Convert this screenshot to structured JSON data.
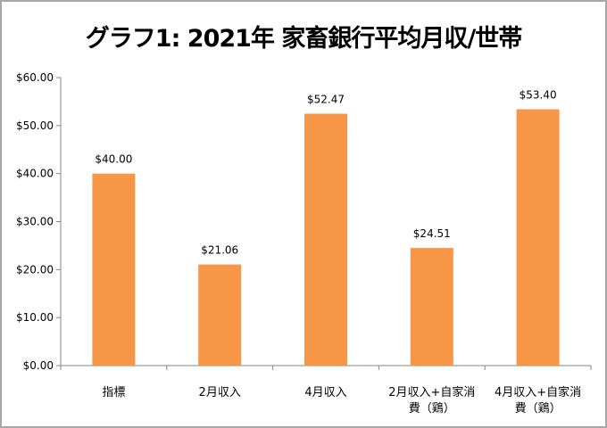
{
  "chart_data": {
    "type": "bar",
    "title": "グラフ1: 2021年 家畜銀行平均月収/世帯",
    "categories": [
      [
        "指標"
      ],
      [
        "2月収入"
      ],
      [
        "4月収入"
      ],
      [
        "2月収入+自家消",
        "費（鶏）"
      ],
      [
        "4月収入+自家消",
        "費（鶏）"
      ]
    ],
    "values": [
      40.0,
      21.06,
      52.47,
      24.51,
      53.4
    ],
    "data_labels": [
      "$40.00",
      "$21.06",
      "$52.47",
      "$24.51",
      "$53.40"
    ],
    "ylim": [
      0,
      60
    ],
    "yticks": [
      "$0.00",
      "$10.00",
      "$20.00",
      "$30.00",
      "$40.00",
      "$50.00",
      "$60.00"
    ],
    "grid": false,
    "bar_color": "#F79646",
    "xlabel": "",
    "ylabel": ""
  }
}
